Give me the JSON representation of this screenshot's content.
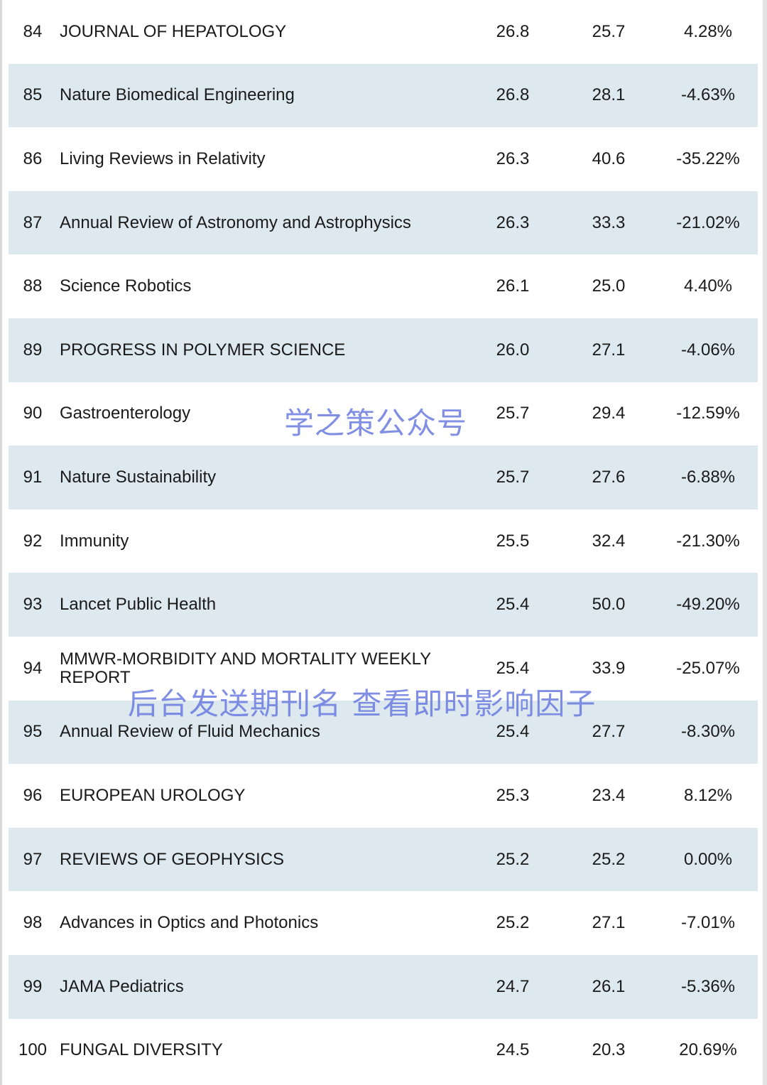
{
  "rows": [
    {
      "rank": "84",
      "name": "JOURNAL OF HEPATOLOGY",
      "if": "26.8",
      "prev": "25.7",
      "change": "4.28%"
    },
    {
      "rank": "85",
      "name": "Nature Biomedical Engineering",
      "if": "26.8",
      "prev": "28.1",
      "change": "-4.63%"
    },
    {
      "rank": "86",
      "name": "Living Reviews in Relativity",
      "if": "26.3",
      "prev": "40.6",
      "change": "-35.22%"
    },
    {
      "rank": "87",
      "name": "Annual Review of Astronomy and Astrophysics",
      "if": "26.3",
      "prev": "33.3",
      "change": "-21.02%"
    },
    {
      "rank": "88",
      "name": "Science Robotics",
      "if": "26.1",
      "prev": "25.0",
      "change": "4.40%"
    },
    {
      "rank": "89",
      "name": "PROGRESS IN POLYMER SCIENCE",
      "if": "26.0",
      "prev": "27.1",
      "change": "-4.06%"
    },
    {
      "rank": "90",
      "name": "Gastroenterology",
      "if": "25.7",
      "prev": "29.4",
      "change": "-12.59%"
    },
    {
      "rank": "91",
      "name": "Nature Sustainability",
      "if": "25.7",
      "prev": "27.6",
      "change": "-6.88%"
    },
    {
      "rank": "92",
      "name": "Immunity",
      "if": "25.5",
      "prev": "32.4",
      "change": "-21.30%"
    },
    {
      "rank": "93",
      "name": "Lancet Public Health",
      "if": "25.4",
      "prev": "50.0",
      "change": "-49.20%"
    },
    {
      "rank": "94",
      "name": "MMWR-MORBIDITY AND MORTALITY WEEKLY REPORT",
      "if": "25.4",
      "prev": "33.9",
      "change": "-25.07%"
    },
    {
      "rank": "95",
      "name": "Annual Review of Fluid Mechanics",
      "if": "25.4",
      "prev": "27.7",
      "change": "-8.30%"
    },
    {
      "rank": "96",
      "name": "EUROPEAN UROLOGY",
      "if": "25.3",
      "prev": "23.4",
      "change": "8.12%"
    },
    {
      "rank": "97",
      "name": "REVIEWS OF GEOPHYSICS",
      "if": "25.2",
      "prev": "25.2",
      "change": "0.00%"
    },
    {
      "rank": "98",
      "name": "Advances in Optics and Photonics",
      "if": "25.2",
      "prev": "27.1",
      "change": "-7.01%"
    },
    {
      "rank": "99",
      "name": "JAMA Pediatrics",
      "if": "24.7",
      "prev": "26.1",
      "change": "-5.36%"
    },
    {
      "rank": "100",
      "name": "FUNGAL DIVERSITY",
      "if": "24.5",
      "prev": "20.3",
      "change": "20.69%"
    }
  ],
  "watermarks": {
    "top": "学之策公众号",
    "bottom": "后台发送期刊名 查看即时影响因子"
  },
  "colors": {
    "row_shade": "#dde9ef",
    "watermark": "#6b7be0"
  }
}
